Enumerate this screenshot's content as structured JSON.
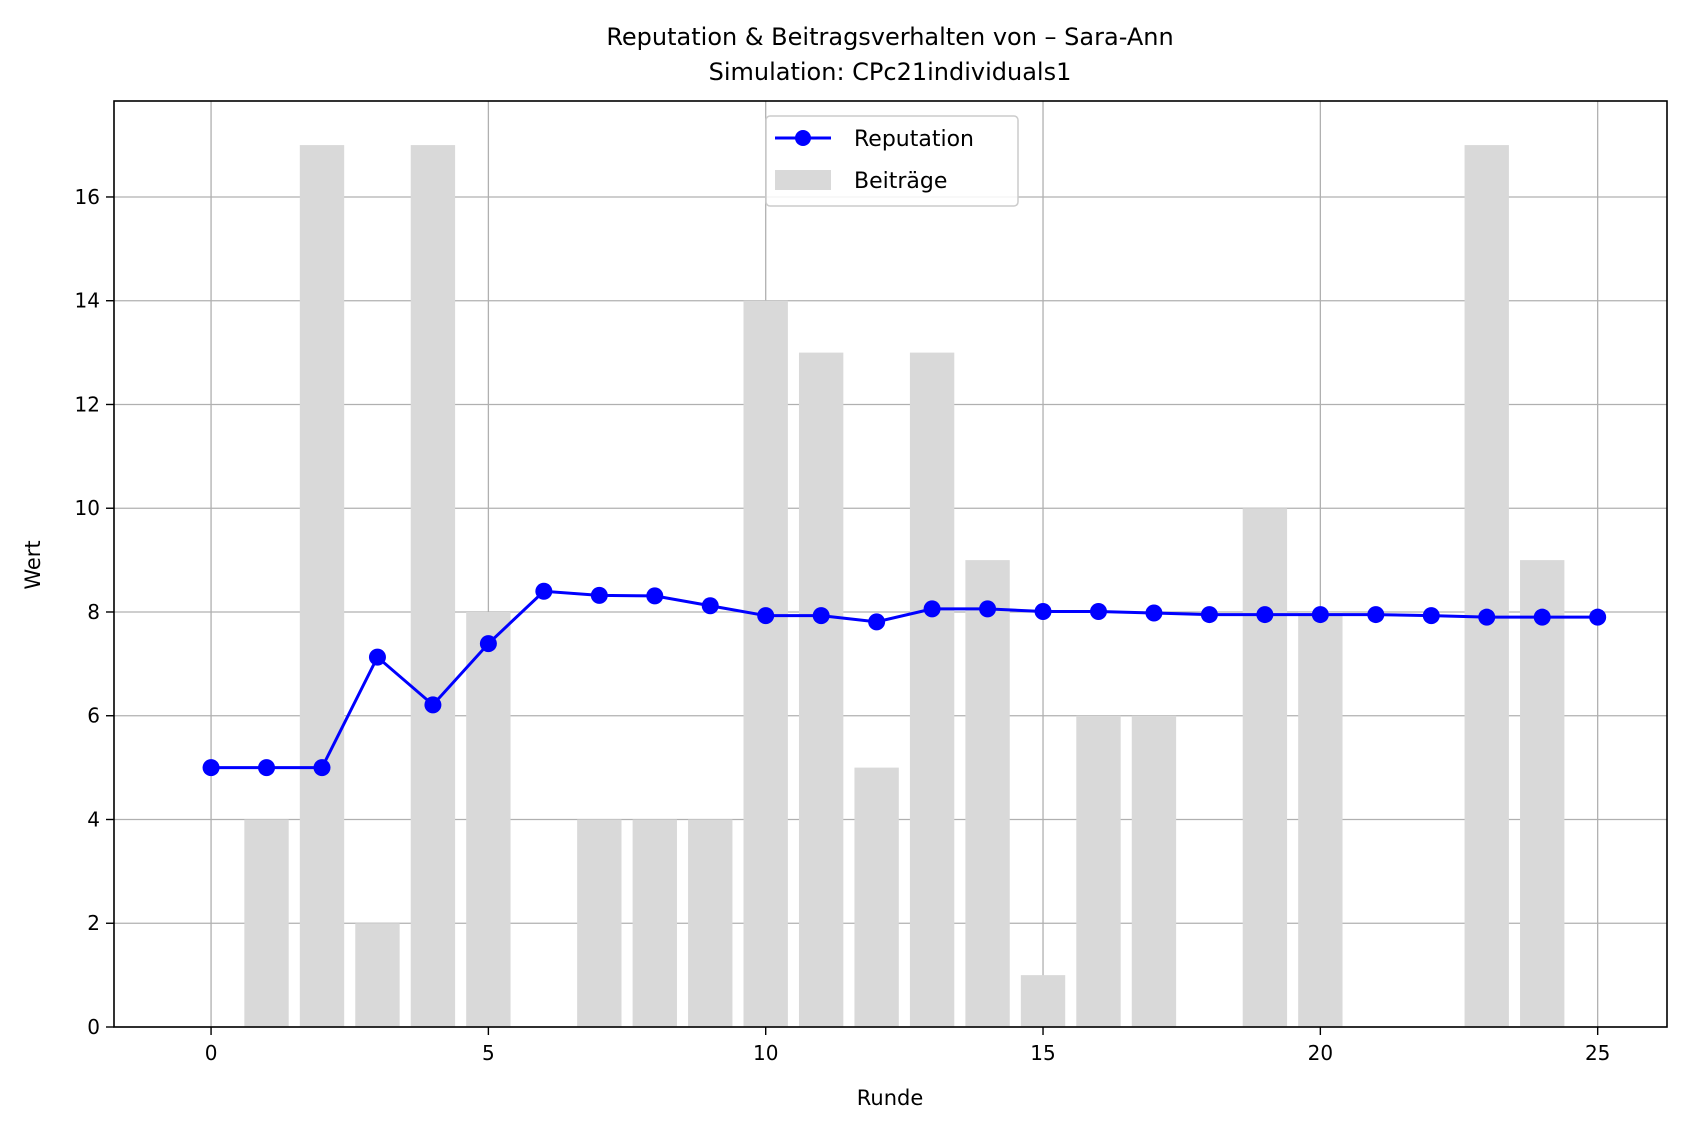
{
  "chart_data": {
    "type": "bar",
    "title": "Reputation & Beitragsverhalten von – Sara-Ann",
    "subtitle": "Simulation: CPc21individuals1",
    "xlabel": "Runde",
    "ylabel": "Wert",
    "xlim": [
      -1.75,
      26.25
    ],
    "ylim": [
      0,
      17.85
    ],
    "xticks": [
      0,
      5,
      10,
      15,
      20,
      25
    ],
    "yticks": [
      0,
      2,
      4,
      6,
      8,
      10,
      12,
      14,
      16
    ],
    "grid": true,
    "legend_position": "top-center",
    "x": [
      0,
      1,
      2,
      3,
      4,
      5,
      6,
      7,
      8,
      9,
      10,
      11,
      12,
      13,
      14,
      15,
      16,
      17,
      18,
      19,
      20,
      21,
      22,
      23,
      24,
      25
    ],
    "series": [
      {
        "name": "Beiträge",
        "kind": "bar",
        "color": "#d9d9d9",
        "values": [
          0,
          4,
          17,
          2,
          17,
          8,
          0,
          4,
          4,
          4,
          14,
          13,
          5,
          13,
          9,
          1,
          6,
          6,
          0,
          10,
          8,
          0,
          0,
          17,
          9,
          0
        ]
      },
      {
        "name": "Reputation",
        "kind": "line",
        "color": "#0000ff",
        "marker": "circle",
        "values": [
          5.0,
          5.0,
          5.0,
          7.13,
          6.21,
          7.39,
          8.4,
          8.32,
          8.31,
          8.12,
          7.93,
          7.93,
          7.81,
          8.06,
          8.06,
          8.01,
          8.01,
          7.98,
          7.95,
          7.95,
          7.95,
          7.95,
          7.93,
          7.9,
          7.9,
          7.9
        ]
      }
    ]
  }
}
